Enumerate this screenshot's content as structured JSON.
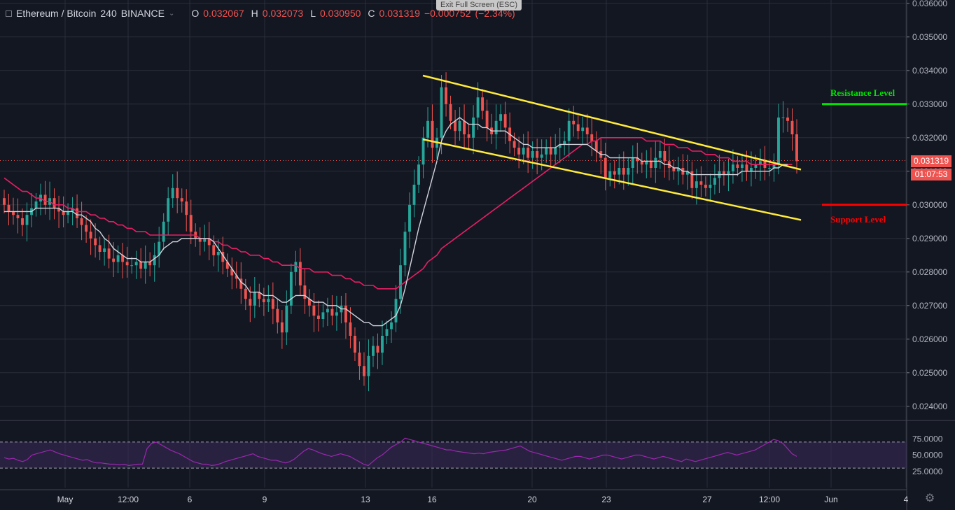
{
  "header": {
    "symbol": "Ethereum / Bitcoin",
    "interval": "240",
    "exchange": "BINANCE",
    "open_label": "O",
    "open": "0.032067",
    "high_label": "H",
    "high": "0.032073",
    "low_label": "L",
    "low": "0.030950",
    "close_label": "C",
    "close": "0.031319",
    "change": "−0.000752",
    "change_pct": "(−2.34%)"
  },
  "exit_fullscreen": "Exit Full Screen (ESC)",
  "current_price": "0.031319",
  "countdown": "01:07:53",
  "annotations": {
    "resistance": "Resistance Level",
    "support": "Support Level"
  },
  "colors": {
    "up": "#26a69a",
    "down": "#ef5350",
    "ma_fast": "#d1d4dc",
    "ma_slow": "#e91e63",
    "channel": "#ffeb3b",
    "resistance": "#00e600",
    "support": "#ff0000",
    "rsi": "#9c27b0"
  },
  "chart_data": {
    "type": "candlestick",
    "price_axis": {
      "ticks": [
        "0.036000",
        "0.035000",
        "0.034000",
        "0.033000",
        "0.032000",
        "0.031000",
        "0.030000",
        "0.029000",
        "0.028000",
        "0.027000",
        "0.026000",
        "0.025000",
        "0.024000"
      ],
      "ylim": [
        0.0236,
        0.0361
      ]
    },
    "time_axis": {
      "ticks": [
        "May",
        "12:00",
        "6",
        "9",
        "13",
        "16",
        "20",
        "23",
        "27",
        "12:00",
        "Jun",
        "4"
      ]
    },
    "rsi_axis": {
      "ticks": [
        "75.0000",
        "50.0000",
        "25.0000"
      ],
      "ylim": [
        0,
        100
      ],
      "band": [
        30,
        70
      ]
    },
    "close_series": [
      0.03,
      0.0298,
      0.0297,
      0.0296,
      0.0294,
      0.0297,
      0.0299,
      0.0301,
      0.0303,
      0.03,
      0.0302,
      0.0299,
      0.0298,
      0.0297,
      0.0298,
      0.0299,
      0.0296,
      0.0294,
      0.0292,
      0.029,
      0.0288,
      0.0286,
      0.0287,
      0.0284,
      0.0283,
      0.0285,
      0.0283,
      0.0282,
      0.0282,
      0.0283,
      0.0281,
      0.0283,
      0.0282,
      0.0285,
      0.0289,
      0.0295,
      0.0302,
      0.0305,
      0.0302,
      0.0301,
      0.0297,
      0.0292,
      0.029,
      0.0289,
      0.029,
      0.0288,
      0.0285,
      0.0286,
      0.0283,
      0.0281,
      0.0279,
      0.0278,
      0.0275,
      0.0272,
      0.027,
      0.0274,
      0.0272,
      0.0271,
      0.0272,
      0.0269,
      0.0265,
      0.0262,
      0.027,
      0.028,
      0.0283,
      0.0276,
      0.0272,
      0.027,
      0.0267,
      0.0266,
      0.0268,
      0.0269,
      0.0267,
      0.0268,
      0.027,
      0.0265,
      0.0261,
      0.0256,
      0.0252,
      0.0249,
      0.0255,
      0.0258,
      0.0256,
      0.0261,
      0.0263,
      0.0265,
      0.0272,
      0.0282,
      0.0292,
      0.03,
      0.0306,
      0.0312,
      0.032,
      0.0325,
      0.0317,
      0.032,
      0.0335,
      0.033,
      0.0325,
      0.0322,
      0.0325,
      0.0321,
      0.032,
      0.0326,
      0.0332,
      0.0328,
      0.0323,
      0.0321,
      0.0325,
      0.0327,
      0.0323,
      0.0319,
      0.0317,
      0.0315,
      0.0317,
      0.0314,
      0.0316,
      0.0314,
      0.0315,
      0.0317,
      0.0315,
      0.0317,
      0.0318,
      0.0319,
      0.0325,
      0.0324,
      0.0322,
      0.0323,
      0.0321,
      0.0319,
      0.0316,
      0.0314,
      0.0308,
      0.031,
      0.0309,
      0.0311,
      0.0309,
      0.0311,
      0.0314,
      0.0313,
      0.0312,
      0.0313,
      0.0311,
      0.0314,
      0.0316,
      0.0313,
      0.0311,
      0.031,
      0.0311,
      0.0309,
      0.031,
      0.0305,
      0.0307,
      0.0306,
      0.0305,
      0.0306,
      0.0308,
      0.031,
      0.0309,
      0.031,
      0.0312,
      0.0311,
      0.0312,
      0.031,
      0.0311,
      0.0312,
      0.0313,
      0.0311,
      0.0311,
      0.0312,
      0.0326,
      0.0326,
      0.0325,
      0.0321,
      0.0313
    ],
    "ma_fast": [
      0.0298,
      0.0298,
      0.0298,
      0.0298,
      0.0298,
      0.0298,
      0.0298,
      0.0299,
      0.0299,
      0.0299,
      0.0299,
      0.0299,
      0.0299,
      0.0298,
      0.0298,
      0.0298,
      0.0297,
      0.0297,
      0.0296,
      0.0295,
      0.0293,
      0.0292,
      0.029,
      0.0289,
      0.0287,
      0.0286,
      0.0285,
      0.0284,
      0.0284,
      0.0284,
      0.0283,
      0.0283,
      0.0283,
      0.0284,
      0.0285,
      0.0287,
      0.0288,
      0.0289,
      0.0289,
      0.029,
      0.029,
      0.029,
      0.029,
      0.029,
      0.029,
      0.029,
      0.0289,
      0.0287,
      0.0285,
      0.0283,
      0.0281,
      0.0279,
      0.0277,
      0.0276,
      0.0274,
      0.0274,
      0.0274,
      0.0273,
      0.0273,
      0.0273,
      0.0272,
      0.0271,
      0.0271,
      0.0272,
      0.0273,
      0.0273,
      0.0273,
      0.0272,
      0.0271,
      0.0271,
      0.0271,
      0.027,
      0.027,
      0.027,
      0.0269,
      0.0269,
      0.0268,
      0.0267,
      0.0266,
      0.0265,
      0.0265,
      0.0264,
      0.0264,
      0.0264,
      0.0265,
      0.0266,
      0.0267,
      0.027,
      0.0275,
      0.0281,
      0.0287,
      0.0293,
      0.0298,
      0.0303,
      0.0308,
      0.0313,
      0.0319,
      0.0322,
      0.0324,
      0.0325,
      0.0326,
      0.0325,
      0.0324,
      0.0324,
      0.0324,
      0.0323,
      0.0323,
      0.0322,
      0.0322,
      0.0322,
      0.0322,
      0.0321,
      0.032,
      0.0319,
      0.0318,
      0.0318,
      0.0317,
      0.0317,
      0.0317,
      0.0317,
      0.0317,
      0.0317,
      0.0318,
      0.0318,
      0.0318,
      0.0318,
      0.0318,
      0.0318,
      0.0318,
      0.0317,
      0.0316,
      0.0315,
      0.0315,
      0.0314,
      0.0314,
      0.0314,
      0.0314,
      0.0314,
      0.0314,
      0.0314,
      0.0313,
      0.0313,
      0.0313,
      0.0313,
      0.0313,
      0.0312,
      0.0312,
      0.0311,
      0.0311,
      0.031,
      0.031,
      0.0309,
      0.0309,
      0.0309,
      0.0309,
      0.0309,
      0.0309,
      0.0309,
      0.0309,
      0.0309,
      0.0309,
      0.0309,
      0.031,
      0.031,
      0.031,
      0.031,
      0.031,
      0.031,
      0.031,
      0.0311,
      0.0311,
      0.0312,
      0.0312
    ],
    "ma_slow": [
      0.0308,
      0.0307,
      0.0306,
      0.0305,
      0.0304,
      0.0304,
      0.0303,
      0.0302,
      0.0302,
      0.0301,
      0.0301,
      0.03,
      0.03,
      0.03,
      0.0299,
      0.0299,
      0.0298,
      0.0298,
      0.0298,
      0.0297,
      0.0297,
      0.0296,
      0.0296,
      0.0295,
      0.0295,
      0.0294,
      0.0294,
      0.0293,
      0.0293,
      0.0292,
      0.0292,
      0.0292,
      0.0291,
      0.0291,
      0.0291,
      0.0291,
      0.0291,
      0.0291,
      0.0291,
      0.0291,
      0.0291,
      0.0291,
      0.0291,
      0.029,
      0.029,
      0.029,
      0.0289,
      0.0289,
      0.0288,
      0.0288,
      0.0287,
      0.0287,
      0.0286,
      0.0286,
      0.0285,
      0.0285,
      0.0285,
      0.0284,
      0.0284,
      0.0283,
      0.0283,
      0.0282,
      0.0282,
      0.0282,
      0.0282,
      0.0281,
      0.0281,
      0.0281,
      0.028,
      0.028,
      0.028,
      0.028,
      0.0279,
      0.0279,
      0.0279,
      0.0278,
      0.0278,
      0.0277,
      0.0277,
      0.0276,
      0.0276,
      0.0276,
      0.0275,
      0.0275,
      0.0275,
      0.0275,
      0.0275,
      0.0276,
      0.0277,
      0.0278,
      0.0279,
      0.028,
      0.0281,
      0.0283,
      0.0284,
      0.0285,
      0.0287,
      0.0288,
      0.0289,
      0.029,
      0.0291,
      0.0292,
      0.0293,
      0.0294,
      0.0295,
      0.0296,
      0.0297,
      0.0298,
      0.0299,
      0.03,
      0.0301,
      0.0302,
      0.0303,
      0.0304,
      0.0305,
      0.0306,
      0.0307,
      0.0308,
      0.0309,
      0.031,
      0.0311,
      0.0312,
      0.0313,
      0.0314,
      0.0315,
      0.0316,
      0.0317,
      0.0318,
      0.0318,
      0.0319,
      0.0319,
      0.032,
      0.032,
      0.032,
      0.032,
      0.032,
      0.032,
      0.032,
      0.032,
      0.032,
      0.032,
      0.0319,
      0.0319,
      0.0319,
      0.0319,
      0.0318,
      0.0318,
      0.0318,
      0.0317,
      0.0317,
      0.0317,
      0.0316,
      0.0316,
      0.0316,
      0.0315,
      0.0315,
      0.0315,
      0.0314,
      0.0314,
      0.0314,
      0.0313,
      0.0313,
      0.0313,
      0.0313,
      0.0312,
      0.0312,
      0.0312,
      0.0312,
      0.0312,
      0.0312,
      0.0312,
      0.0312,
      0.0312,
      0.0312
    ],
    "channel_upper": [
      [
        16,
        0.03385
      ],
      [
        32,
        0.03105
      ]
    ],
    "channel_lower": [
      [
        16,
        0.03195
      ],
      [
        32,
        0.02955
      ]
    ],
    "resistance": 0.033,
    "support": 0.03,
    "rsi_values": [
      46,
      44,
      45,
      42,
      40,
      43,
      50,
      52,
      54,
      56,
      58,
      55,
      52,
      50,
      48,
      46,
      44,
      42,
      43,
      40,
      38,
      38,
      37,
      36,
      36,
      35,
      36,
      34,
      35,
      36,
      36,
      60,
      68,
      70,
      66,
      62,
      58,
      55,
      52,
      48,
      44,
      40,
      38,
      36,
      36,
      34,
      35,
      37,
      40,
      42,
      44,
      46,
      48,
      50,
      52,
      48,
      46,
      44,
      42,
      42,
      40,
      38,
      40,
      44,
      50,
      56,
      60,
      58,
      55,
      52,
      50,
      48,
      50,
      52,
      50,
      48,
      44,
      40,
      36,
      34,
      40,
      46,
      50,
      56,
      62,
      66,
      70,
      76,
      74,
      72,
      70,
      68,
      66,
      64,
      62,
      60,
      58,
      58,
      56,
      55,
      54,
      53,
      52,
      53,
      52,
      54,
      55,
      56,
      57,
      58,
      60,
      62,
      64,
      60,
      56,
      54,
      52,
      50,
      48,
      46,
      44,
      42,
      44,
      46,
      48,
      48,
      46,
      44,
      46,
      48,
      50,
      50,
      48,
      46,
      44,
      46,
      48,
      50,
      50,
      48,
      46,
      44,
      46,
      48,
      46,
      44,
      42,
      40,
      44,
      42,
      40,
      42,
      44,
      46,
      48,
      50,
      52,
      54,
      52,
      50,
      52,
      54,
      56,
      58,
      62,
      66,
      70,
      74,
      72,
      68,
      60,
      52,
      48
    ]
  }
}
